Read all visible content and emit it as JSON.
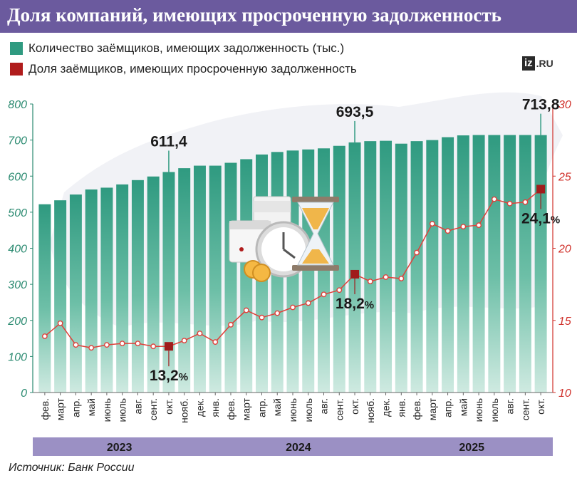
{
  "title": "Доля компаний, имеющих просроченную задолженность",
  "legend": {
    "borrowers": "Количество заёмщиков, имеющих задолженность (тыс.)",
    "overdue": "Доля заёмщиков, имеющих просроченную задолженность"
  },
  "logo": {
    "box": "iz",
    "suffix": ".RU"
  },
  "source": "Источник: Банк России",
  "colors": {
    "header": "#6b5a9e",
    "bar": "#2f9a80",
    "line": "#e0403a",
    "marker": "#a01c1c",
    "left_axis": "#2a8a70",
    "right_axis": "#d0302a",
    "year_band": "#9b90c4"
  },
  "icon": "calendar-clock-hourglass-icon",
  "chart_data": {
    "type": "bar",
    "categories": [
      "фев.",
      "март",
      "апр.",
      "май",
      "июнь",
      "июль",
      "авг.",
      "сент.",
      "окт.",
      "нояб.",
      "дек.",
      "янв.",
      "фев.",
      "март",
      "апр.",
      "май",
      "июнь",
      "июль",
      "авг.",
      "сент.",
      "окт.",
      "нояб.",
      "дек.",
      "янв.",
      "фев.",
      "март",
      "апр.",
      "май",
      "июнь",
      "июль",
      "авг.",
      "сент.",
      "окт."
    ],
    "years": [
      {
        "label": "2023",
        "start": 0,
        "end": 10
      },
      {
        "label": "2024",
        "start": 11,
        "end": 22
      },
      {
        "label": "2025",
        "start": 23,
        "end": 32
      }
    ],
    "series": [
      {
        "name": "Количество заёмщиков, имеющих задолженность (тыс.)",
        "type": "bar",
        "axis": "left",
        "values": [
          522,
          533,
          549,
          563,
          568,
          577,
          589,
          599,
          611.4,
          622,
          629,
          629,
          637,
          647,
          660,
          667,
          671,
          674,
          677,
          684,
          693.5,
          697,
          698,
          690,
          697,
          700,
          708,
          713,
          714,
          714,
          714,
          714,
          713.8
        ]
      },
      {
        "name": "Доля заёмщиков, имеющих просроченную задолженность",
        "type": "line",
        "axis": "right",
        "values": [
          13.9,
          14.8,
          13.3,
          13.1,
          13.3,
          13.4,
          13.4,
          13.2,
          13.2,
          13.6,
          14.1,
          13.5,
          14.7,
          15.7,
          15.2,
          15.5,
          15.9,
          16.2,
          16.8,
          17.1,
          18.2,
          17.7,
          18.0,
          17.9,
          19.7,
          21.7,
          21.2,
          21.5,
          21.6,
          23.4,
          23.1,
          23.2,
          24.1
        ]
      }
    ],
    "annotations": [
      {
        "index": 8,
        "series": 0,
        "text": "611,4"
      },
      {
        "index": 20,
        "series": 0,
        "text": "693,5"
      },
      {
        "index": 32,
        "series": 0,
        "text": "713,8"
      },
      {
        "index": 8,
        "series": 1,
        "text": "13,2",
        "suffix": "%"
      },
      {
        "index": 20,
        "series": 1,
        "text": "18,2",
        "suffix": "%"
      },
      {
        "index": 32,
        "series": 1,
        "text": "24,1",
        "suffix": "%"
      }
    ],
    "y_left": {
      "min": 0,
      "max": 800,
      "ticks": [
        "0",
        "100",
        "200",
        "300",
        "400",
        "500",
        "600",
        "700",
        "800"
      ]
    },
    "y_right": {
      "min": 10,
      "max": 30,
      "ticks": [
        "10",
        "15",
        "20",
        "25",
        "30"
      ]
    },
    "grid": false,
    "legend_position": "top-left"
  }
}
